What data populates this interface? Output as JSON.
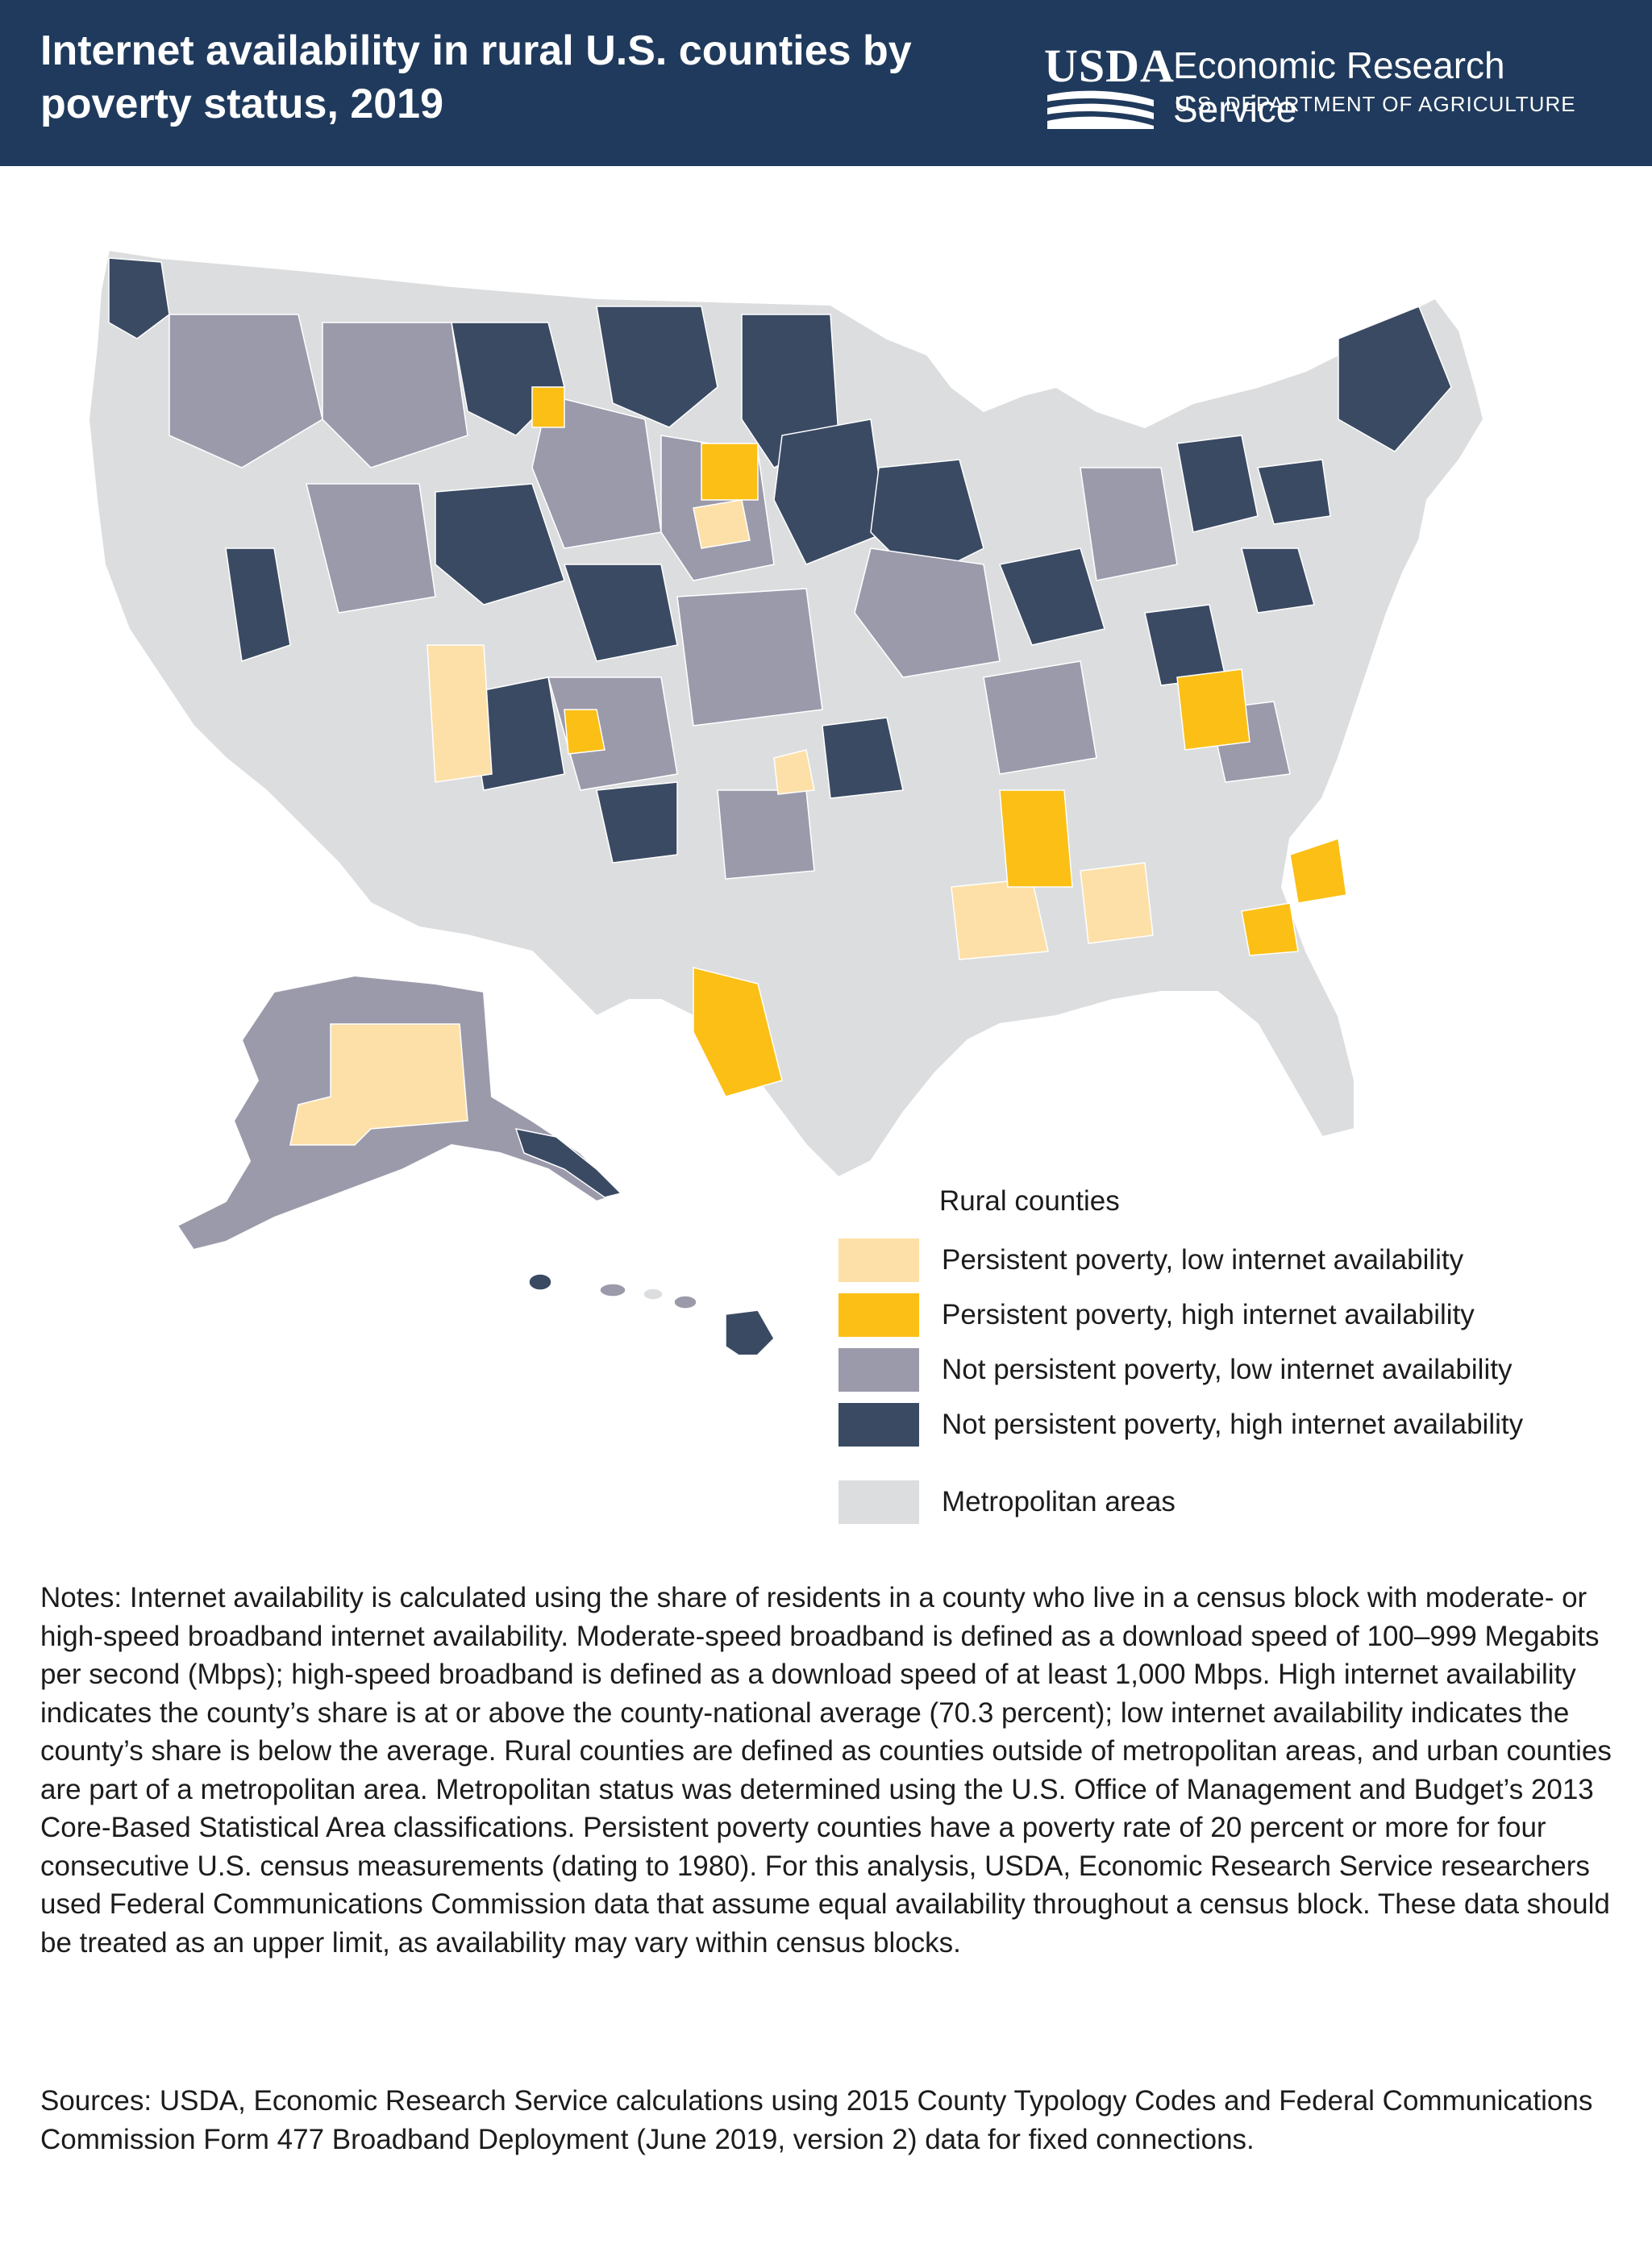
{
  "header": {
    "title": "Internet availability in rural U.S. counties by poverty status, 2019",
    "agency_logo_text": "USDA",
    "agency_name": "Economic Research Service",
    "department": "U.S. DEPARTMENT OF AGRICULTURE"
  },
  "map": {
    "regions": [
      "Contiguous United States",
      "Alaska",
      "Hawaii"
    ],
    "colors": {
      "background_land": "#dcdddf",
      "persistent_low": "#fde0a8",
      "persistent_high": "#fbbf16",
      "not_persistent_low": "#9b9aab",
      "not_persistent_high": "#3a4a63",
      "metro": "#dcdddf",
      "county_border": "#ffffff"
    }
  },
  "legend": {
    "title": "Rural counties",
    "items": [
      {
        "label": "Persistent poverty, low internet availability",
        "color": "#fde0a8"
      },
      {
        "label": "Persistent poverty, high internet availability",
        "color": "#fbbf16"
      },
      {
        "label": "Not persistent poverty, low internet availability",
        "color": "#9b9aab"
      },
      {
        "label": "Not persistent poverty, high internet availability",
        "color": "#3a4a63"
      }
    ],
    "metro": {
      "label": "Metropolitan areas",
      "color": "#dcdddf"
    }
  },
  "notes": "Notes: Internet availability is calculated using the share of residents in a county who live in a census block with moderate- or high-speed broadband internet availability. Moderate-speed broadband is defined as a download speed of 100–999 Megabits per second (Mbps); high-speed broadband is defined as a download speed of at least 1,000 Mbps. High internet availability indicates the county’s share is at or above the county-national average (70.3 percent); low internet availability indicates the county’s share is below the average. Rural counties are defined as counties outside of metropolitan areas, and urban counties are part of a metropolitan area. Metropolitan status was determined using the U.S. Office of Management and Budget’s 2013 Core-Based Statistical Area classifications. Persistent poverty counties have a poverty rate of 20 percent or more for four consecutive U.S. census measurements (dating to 1980). For this analysis, USDA, Economic Research Service researchers used Federal Communications Commission data that assume equal availability throughout a census block. These data should be treated as an upper limit, as availability may vary within census blocks.",
  "sources": "Sources: USDA, Economic Research Service calculations using 2015 County Typology Codes and Federal Communications Commission Form 477 Broadband Deployment (June 2019, version 2) data for fixed connections."
}
